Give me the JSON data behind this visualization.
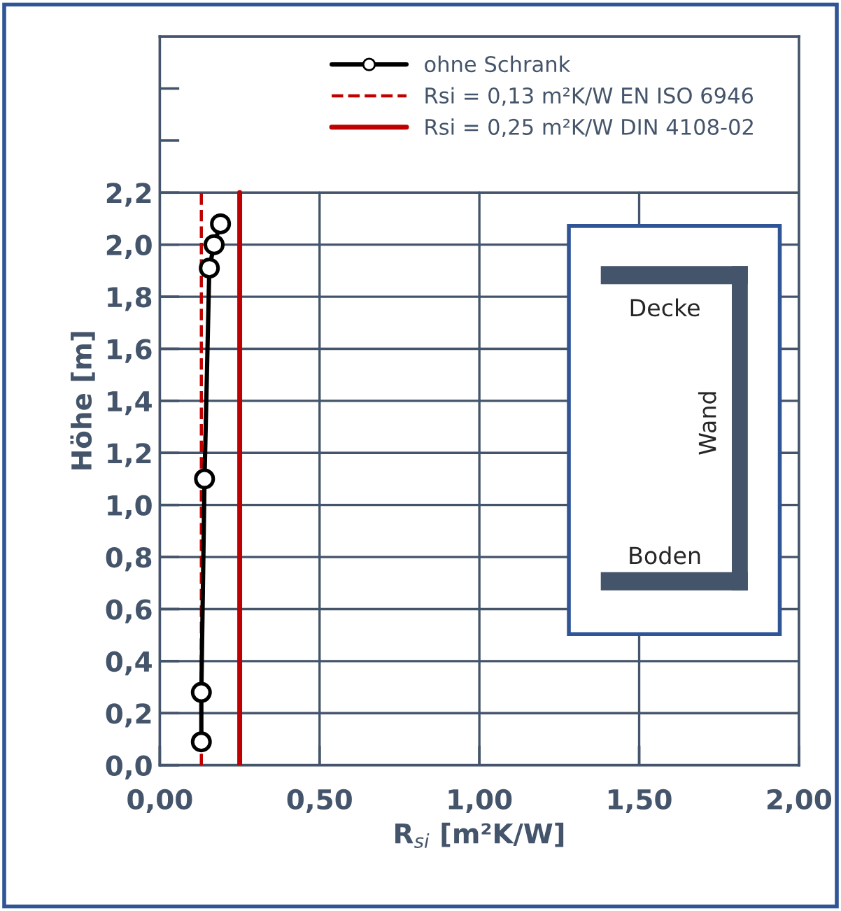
{
  "chart_data": {
    "type": "line",
    "xlabel": "R$_{si}$ [m²K/W]",
    "ylabel": "Höhe [m]",
    "x": [
      0.13,
      0.13,
      0.14,
      0.155,
      0.17,
      0.19
    ],
    "series": [
      {
        "name": "ohne Schrank",
        "color": "#000000",
        "values": [
          0.09,
          0.28,
          1.1,
          1.91,
          2.0,
          2.08
        ]
      }
    ],
    "marker": "circle",
    "line_style": "solid",
    "xlim": [
      0,
      2
    ],
    "ylim": [
      0,
      2.8
    ],
    "xticks": [
      {
        "value": 0,
        "label": "0,00"
      },
      {
        "value": 0.5,
        "label": "0,50"
      },
      {
        "value": 1,
        "label": "1,00"
      },
      {
        "value": 1.5,
        "label": "1,50"
      },
      {
        "value": 2,
        "label": "2,00"
      }
    ],
    "yticks": [
      {
        "value": 0,
        "label": "0,0"
      },
      {
        "value": 0.2,
        "label": "0,2"
      },
      {
        "value": 0.4,
        "label": "0,4"
      },
      {
        "value": 0.6,
        "label": "0,6"
      },
      {
        "value": 0.8,
        "label": "0,8"
      },
      {
        "value": 1.0,
        "label": "1,0"
      },
      {
        "value": 1.2,
        "label": "1,2"
      },
      {
        "value": 1.4,
        "label": "1,4"
      },
      {
        "value": 1.6,
        "label": "1,6"
      },
      {
        "value": 1.8,
        "label": "1,8"
      },
      {
        "value": 2.0,
        "label": "2,0"
      },
      {
        "value": 2.2,
        "label": "2,2"
      },
      {
        "value": 2.4,
        "label": null
      },
      {
        "value": 2.6,
        "label": null
      }
    ],
    "ref_lines": [
      {
        "axis": "x",
        "value": 0.13,
        "label": "Rsi = 0,13 m²K/W EN ISO 6946",
        "color": "#c00000",
        "line_style": "dashed"
      },
      {
        "axis": "x",
        "value": 0.25,
        "label": "Rsi = 0,25 m²K/W DIN 4108-02",
        "color": "#c00000",
        "line_style": "solid"
      }
    ],
    "annotations": [
      "Decke",
      "Wand",
      "Boden"
    ],
    "grid": true,
    "legend": "top"
  }
}
